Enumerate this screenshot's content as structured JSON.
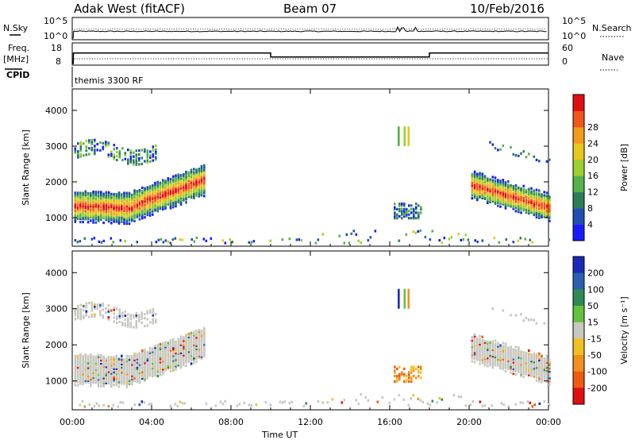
{
  "header": {
    "radar": "Adak West (fitACF)",
    "beam": "Beam 07",
    "date": "10/Feb/2016"
  },
  "top_panels": {
    "nsky_label": "N.Sky",
    "nsearch_label": "N.Search",
    "freq_label_line1": "Freq.",
    "freq_label_line2": "[MHz]",
    "nave_label": "Nave",
    "cpid_label": "CPID",
    "cpid_value": "themis 3300 RF",
    "noise_ticks": [
      "10^5",
      "10^0"
    ],
    "freq_ticks": [
      "18",
      "8"
    ],
    "nave_ticks": [
      "60",
      "0"
    ]
  },
  "chart_data": [
    {
      "type": "heatmap",
      "name": "power",
      "ylabel": "Slant Range [km]",
      "yticks": [
        1000,
        2000,
        3000,
        4000
      ],
      "ylim": [
        200,
        4600
      ],
      "colorbar_label": "Power [dB]",
      "colorbar_ticks": [
        4,
        8,
        12,
        16,
        20,
        24,
        28
      ],
      "colorbar_colors": [
        "#1a1aff",
        "#1f4fb4",
        "#2e7d5a",
        "#55b24a",
        "#9bd02f",
        "#e6c81c",
        "#f29a1b",
        "#f0561e",
        "#e01010"
      ]
    },
    {
      "type": "heatmap",
      "name": "velocity",
      "ylabel": "Slant Range [km]",
      "yticks": [
        1000,
        2000,
        3000,
        4000
      ],
      "ylim": [
        200,
        4600
      ],
      "colorbar_label": "Velocity [m s⁻¹]",
      "colorbar_ticks": [
        200,
        100,
        50,
        15,
        -15,
        -50,
        -100,
        -200
      ],
      "colorbar_colors": [
        "#1a2ab8",
        "#2c5fb0",
        "#2f8a55",
        "#64c23a",
        "#c8c8c0",
        "#f0c020",
        "#f09020",
        "#f05a10",
        "#e01010"
      ]
    }
  ],
  "x_axis": {
    "ticks": [
      "00:00",
      "04:00",
      "08:00",
      "12:00",
      "16:00",
      "20:00",
      "00:00"
    ],
    "label": "Time UT"
  }
}
